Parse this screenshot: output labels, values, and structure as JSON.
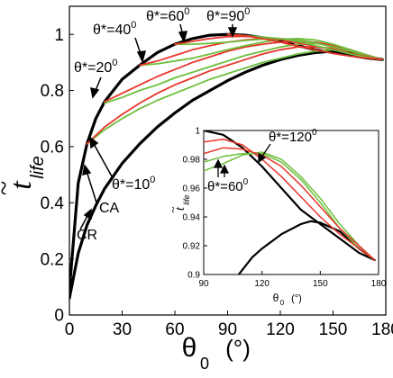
{
  "chart_data": [
    {
      "type": "line",
      "title": "",
      "xlabel_symbol": "θ",
      "xlabel_sub": "0",
      "xlabel_unit": "(°)",
      "ylabel_main": "t",
      "ylabel_tilde": "~",
      "ylabel_sub": "life",
      "xlim": [
        0,
        180
      ],
      "ylim": [
        0,
        1.1
      ],
      "xticks": [
        0,
        30,
        60,
        90,
        120,
        150,
        180
      ],
      "yticks": [
        0,
        0.2,
        0.4,
        0.6,
        0.8,
        1
      ],
      "xtick_labels": [
        "0",
        "30",
        "60",
        "90",
        "120",
        "150",
        "180"
      ],
      "ytick_labels": [
        "0",
        "0.2",
        "0.4",
        "0.6",
        "0.8",
        "1"
      ],
      "series": [
        {
          "name": "CA",
          "color": "#000000",
          "x": [
            0,
            5,
            10,
            15,
            20,
            30,
            40,
            50,
            60,
            70,
            80,
            90,
            100,
            110,
            120,
            130,
            140,
            150,
            160,
            170,
            178
          ],
          "y": [
            0.09,
            0.47,
            0.61,
            0.7,
            0.76,
            0.84,
            0.89,
            0.935,
            0.965,
            0.985,
            0.997,
            1.0,
            0.997,
            0.988,
            0.975,
            0.96,
            0.945,
            0.935,
            0.925,
            0.915,
            0.91
          ]
        },
        {
          "name": "CR",
          "color": "#000000",
          "x": [
            0,
            5,
            10,
            15,
            20,
            30,
            40,
            50,
            60,
            70,
            80,
            90,
            100,
            110,
            120,
            130,
            140,
            150,
            160,
            170,
            178
          ],
          "y": [
            0.06,
            0.22,
            0.32,
            0.39,
            0.45,
            0.54,
            0.61,
            0.67,
            0.72,
            0.765,
            0.8,
            0.835,
            0.865,
            0.89,
            0.91,
            0.925,
            0.935,
            0.94,
            0.935,
            0.92,
            0.91
          ]
        },
        {
          "name": "θ*=10°",
          "color": "#6cbf3c",
          "x": [
            10,
            20,
            30,
            40,
            50,
            60,
            70,
            80,
            90,
            100,
            110,
            120,
            130,
            140,
            150,
            160,
            170,
            178
          ],
          "y": [
            0.61,
            0.66,
            0.7,
            0.735,
            0.765,
            0.79,
            0.815,
            0.84,
            0.86,
            0.88,
            0.9,
            0.915,
            0.93,
            0.94,
            0.945,
            0.94,
            0.925,
            0.91
          ]
        },
        {
          "name": "",
          "color": "#e8352a",
          "x": [
            10,
            20,
            30,
            40,
            50,
            60,
            70,
            80,
            90,
            100,
            110,
            120,
            130,
            140,
            150,
            160,
            170,
            178
          ],
          "y": [
            0.61,
            0.67,
            0.715,
            0.755,
            0.79,
            0.82,
            0.845,
            0.87,
            0.89,
            0.91,
            0.93,
            0.945,
            0.955,
            0.955,
            0.95,
            0.94,
            0.925,
            0.91
          ]
        },
        {
          "name": "θ*=20°",
          "color": "#6cbf3c",
          "x": [
            20,
            30,
            40,
            50,
            60,
            70,
            80,
            90,
            100,
            110,
            120,
            130,
            140,
            150,
            160,
            170,
            178
          ],
          "y": [
            0.755,
            0.775,
            0.8,
            0.82,
            0.845,
            0.865,
            0.885,
            0.905,
            0.925,
            0.94,
            0.955,
            0.965,
            0.968,
            0.96,
            0.945,
            0.925,
            0.91
          ]
        },
        {
          "name": "",
          "color": "#e8352a",
          "x": [
            20,
            30,
            40,
            50,
            60,
            70,
            80,
            90,
            100,
            110,
            120,
            130,
            140,
            150,
            160,
            170,
            178
          ],
          "y": [
            0.76,
            0.79,
            0.82,
            0.85,
            0.875,
            0.9,
            0.92,
            0.94,
            0.955,
            0.965,
            0.972,
            0.975,
            0.972,
            0.962,
            0.945,
            0.925,
            0.91
          ]
        },
        {
          "name": "θ*=40°",
          "color": "#6cbf3c",
          "x": [
            40,
            50,
            60,
            70,
            80,
            90,
            100,
            110,
            120,
            130,
            140,
            150,
            160,
            170,
            178
          ],
          "y": [
            0.89,
            0.895,
            0.905,
            0.915,
            0.93,
            0.945,
            0.96,
            0.972,
            0.982,
            0.985,
            0.98,
            0.965,
            0.945,
            0.925,
            0.91
          ]
        },
        {
          "name": "",
          "color": "#e8352a",
          "x": [
            40,
            50,
            60,
            70,
            80,
            90,
            100,
            110,
            120,
            130,
            140,
            150,
            160,
            170,
            178
          ],
          "y": [
            0.89,
            0.905,
            0.925,
            0.945,
            0.96,
            0.972,
            0.98,
            0.985,
            0.985,
            0.98,
            0.97,
            0.955,
            0.94,
            0.922,
            0.91
          ]
        },
        {
          "name": "θ*=60°",
          "color": "#6cbf3c",
          "x": [
            60,
            70,
            80,
            90,
            100,
            110,
            120,
            130,
            140,
            150,
            160,
            170,
            178
          ],
          "y": [
            0.965,
            0.965,
            0.968,
            0.972,
            0.978,
            0.983,
            0.985,
            0.98,
            0.97,
            0.955,
            0.94,
            0.922,
            0.91
          ]
        },
        {
          "name": "",
          "color": "#e8352a",
          "x": [
            60,
            70,
            80,
            90,
            100,
            110,
            120,
            130,
            140,
            150,
            160,
            170,
            178
          ],
          "y": [
            0.965,
            0.975,
            0.985,
            0.992,
            0.993,
            0.99,
            0.982,
            0.97,
            0.957,
            0.945,
            0.932,
            0.92,
            0.91
          ]
        },
        {
          "name": "θ*=90°",
          "color": "#6cbf3c",
          "x": [
            90,
            100,
            110,
            120,
            130,
            140,
            150,
            160,
            170,
            178
          ],
          "y": [
            1.0,
            0.995,
            0.99,
            0.985,
            0.975,
            0.96,
            0.945,
            0.93,
            0.918,
            0.91
          ]
        },
        {
          "name": "",
          "color": "#e8352a",
          "x": [
            90,
            100,
            110,
            120,
            130,
            140,
            150,
            160,
            170,
            178
          ],
          "y": [
            1.0,
            0.995,
            0.985,
            0.972,
            0.958,
            0.945,
            0.932,
            0.922,
            0.915,
            0.91
          ]
        }
      ],
      "annotations": [
        {
          "text": "θ*=40",
          "sup": "0"
        },
        {
          "text": "θ*=60",
          "sup": "0"
        },
        {
          "text": "θ*=90",
          "sup": "0"
        },
        {
          "text": "θ*=20",
          "sup": "0"
        },
        {
          "text": "θ*=10",
          "sup": "0"
        },
        {
          "text": "CA",
          "sup": ""
        },
        {
          "text": "CR",
          "sup": ""
        }
      ]
    },
    {
      "type": "line",
      "title": "",
      "xlabel_symbol": "θ",
      "xlabel_sub": "0",
      "xlabel_unit": "(°)",
      "ylabel_main": "t",
      "ylabel_tilde": "~",
      "ylabel_sub": "life",
      "xlim": [
        90,
        180
      ],
      "ylim": [
        0.9,
        1.0
      ],
      "xticks": [
        90,
        120,
        150,
        180
      ],
      "yticks": [
        0.9,
        0.92,
        0.94,
        0.96,
        0.98,
        1
      ],
      "xtick_labels": [
        "90",
        "120",
        "150",
        "180"
      ],
      "ytick_labels": [
        "0.9",
        "0.92",
        "0.94",
        "0.96",
        "0.98",
        "1"
      ],
      "series": [
        {
          "name": "CA",
          "color": "#000000",
          "x": [
            90,
            100,
            110,
            120,
            130,
            140,
            150,
            160,
            170,
            178
          ],
          "y": [
            1.0,
            0.997,
            0.988,
            0.975,
            0.96,
            0.945,
            0.935,
            0.925,
            0.915,
            0.91
          ]
        },
        {
          "name": "CR",
          "color": "#000000",
          "x": [
            108,
            115,
            120,
            130,
            140,
            145,
            150,
            160,
            170,
            178
          ],
          "y": [
            0.9,
            0.912,
            0.918,
            0.928,
            0.935,
            0.937,
            0.936,
            0.93,
            0.918,
            0.91
          ]
        },
        {
          "name": "",
          "color": "#6cbf3c",
          "x": [
            90,
            100,
            110,
            120,
            130,
            140,
            150,
            160,
            170,
            178
          ],
          "y": [
            0.978,
            0.982,
            0.984,
            0.984,
            0.978,
            0.966,
            0.95,
            0.932,
            0.918,
            0.91
          ]
        },
        {
          "name": "",
          "color": "#e8352a",
          "x": [
            90,
            100,
            110,
            120,
            130,
            140,
            150,
            160,
            170,
            178
          ],
          "y": [
            0.992,
            0.994,
            0.99,
            0.98,
            0.968,
            0.954,
            0.94,
            0.928,
            0.918,
            0.91
          ]
        },
        {
          "name": "",
          "color": "#6cbf3c",
          "x": [
            90,
            100,
            110,
            120,
            130,
            140,
            150,
            160,
            170,
            178
          ],
          "y": [
            0.972,
            0.977,
            0.983,
            0.985,
            0.98,
            0.968,
            0.953,
            0.935,
            0.92,
            0.91
          ]
        },
        {
          "name": "",
          "color": "#e8352a",
          "x": [
            90,
            100,
            110,
            120,
            130,
            140,
            150,
            160,
            170,
            178
          ],
          "y": [
            0.984,
            0.988,
            0.987,
            0.983,
            0.975,
            0.962,
            0.947,
            0.932,
            0.92,
            0.91
          ]
        }
      ],
      "annotations": [
        {
          "text": "θ*=120",
          "sup": "0"
        },
        {
          "text": "θ*=60",
          "sup": "0"
        }
      ]
    }
  ]
}
